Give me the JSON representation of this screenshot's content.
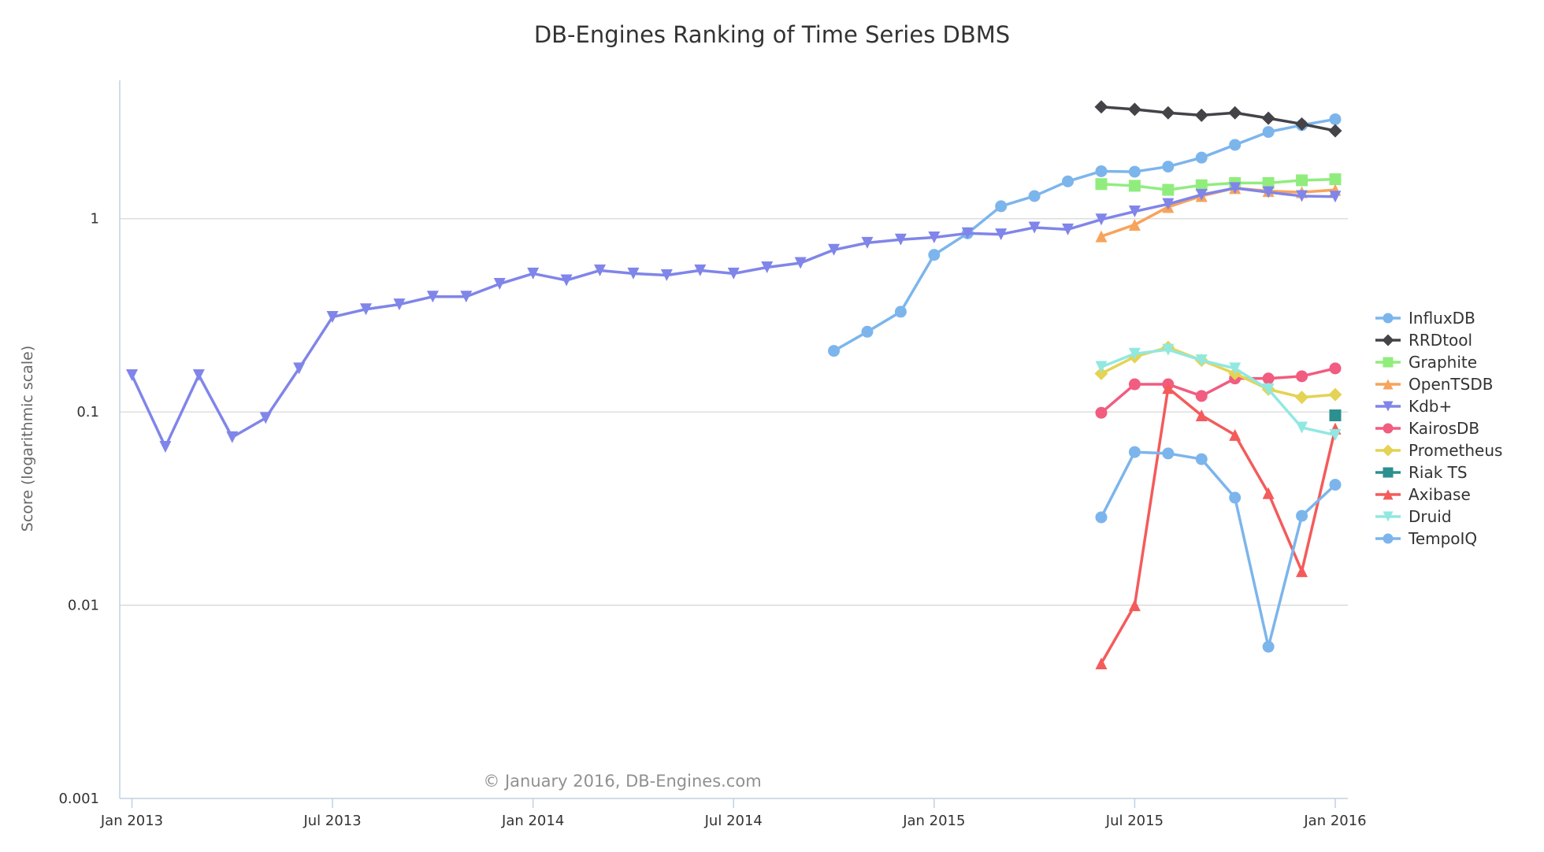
{
  "chart_data": {
    "type": "line",
    "title": "DB-Engines Ranking of Time Series DBMS",
    "ylabel": "Score (logarithmic scale)",
    "xlabel": "",
    "yscale": "log",
    "ylim": [
      0.001,
      5.2
    ],
    "grid": true,
    "legend": "right",
    "credits": "© January 2016, DB-Engines.com",
    "x_ticks": [
      "Jan 2013",
      "Jul 2013",
      "Jan 2014",
      "Jul 2014",
      "Jan 2015",
      "Jul 2015",
      "Jan 2016"
    ],
    "y_ticks": [
      "1",
      "0.1",
      "0.01",
      "0.001"
    ],
    "series": [
      {
        "name": "InfluxDB",
        "color": "#7cb5ec",
        "marker": "circle",
        "start": "2014-10",
        "values": [
          0.207,
          0.26,
          0.33,
          0.65,
          0.84,
          1.16,
          1.31,
          1.56,
          1.76,
          1.75,
          1.86,
          2.07,
          2.41,
          2.81,
          3.05,
          3.27
        ]
      },
      {
        "name": "RRDtool",
        "color": "#434348",
        "marker": "diamond",
        "start": "2015-06",
        "values": [
          3.79,
          3.68,
          3.53,
          3.43,
          3.53,
          3.31,
          3.09,
          2.85
        ]
      },
      {
        "name": "Graphite",
        "color": "#90ed7d",
        "marker": "square",
        "start": "2015-06",
        "values": [
          1.51,
          1.48,
          1.41,
          1.49,
          1.53,
          1.53,
          1.58,
          1.6
        ]
      },
      {
        "name": "OpenTSDB",
        "color": "#f7a35c",
        "marker": "triangle",
        "start": "2015-06",
        "values": [
          0.81,
          0.93,
          1.15,
          1.31,
          1.44,
          1.39,
          1.37,
          1.41
        ]
      },
      {
        "name": "Kdb+",
        "color": "#8085e9",
        "marker": "triangle-down",
        "start": "2013-01",
        "values": [
          0.155,
          0.066,
          0.155,
          0.074,
          0.093,
          0.168,
          0.31,
          0.34,
          0.36,
          0.395,
          0.395,
          0.46,
          0.52,
          0.48,
          0.54,
          0.52,
          0.51,
          0.54,
          0.52,
          0.56,
          0.59,
          0.69,
          0.75,
          0.78,
          0.8,
          0.84,
          0.83,
          0.9,
          0.88,
          0.99,
          1.09,
          1.19,
          1.33,
          1.44,
          1.37,
          1.31,
          1.3
        ]
      },
      {
        "name": "KairosDB",
        "color": "#f15c80",
        "marker": "circle",
        "start": "2015-06",
        "values": [
          0.099,
          0.139,
          0.139,
          0.121,
          0.149,
          0.149,
          0.153,
          0.168
        ]
      },
      {
        "name": "Prometheus",
        "color": "#e4d354",
        "marker": "diamond",
        "start": "2015-06",
        "values": [
          0.158,
          0.193,
          0.216,
          0.185,
          0.158,
          0.131,
          0.119,
          0.123
        ]
      },
      {
        "name": "Riak TS",
        "color": "#2b908f",
        "marker": "square",
        "start": "2016-01",
        "values": [
          0.096
        ]
      },
      {
        "name": "Axibase",
        "color": "#f45b5b",
        "marker": "triangle",
        "start": "2015-06",
        "values": [
          0.005,
          0.01,
          0.133,
          0.096,
          0.076,
          0.038,
          0.015,
          0.082
        ]
      },
      {
        "name": "Druid",
        "color": "#91e8e1",
        "marker": "triangle-down",
        "start": "2015-06",
        "values": [
          0.171,
          0.2,
          0.21,
          0.185,
          0.168,
          0.131,
          0.083,
          0.076
        ]
      },
      {
        "name": "TempoIQ",
        "color": "#7cb5ec",
        "marker": "circle",
        "start": "2015-06",
        "values": [
          0.0285,
          0.062,
          0.061,
          0.057,
          0.036,
          0.0061,
          0.029,
          0.042
        ]
      }
    ]
  }
}
